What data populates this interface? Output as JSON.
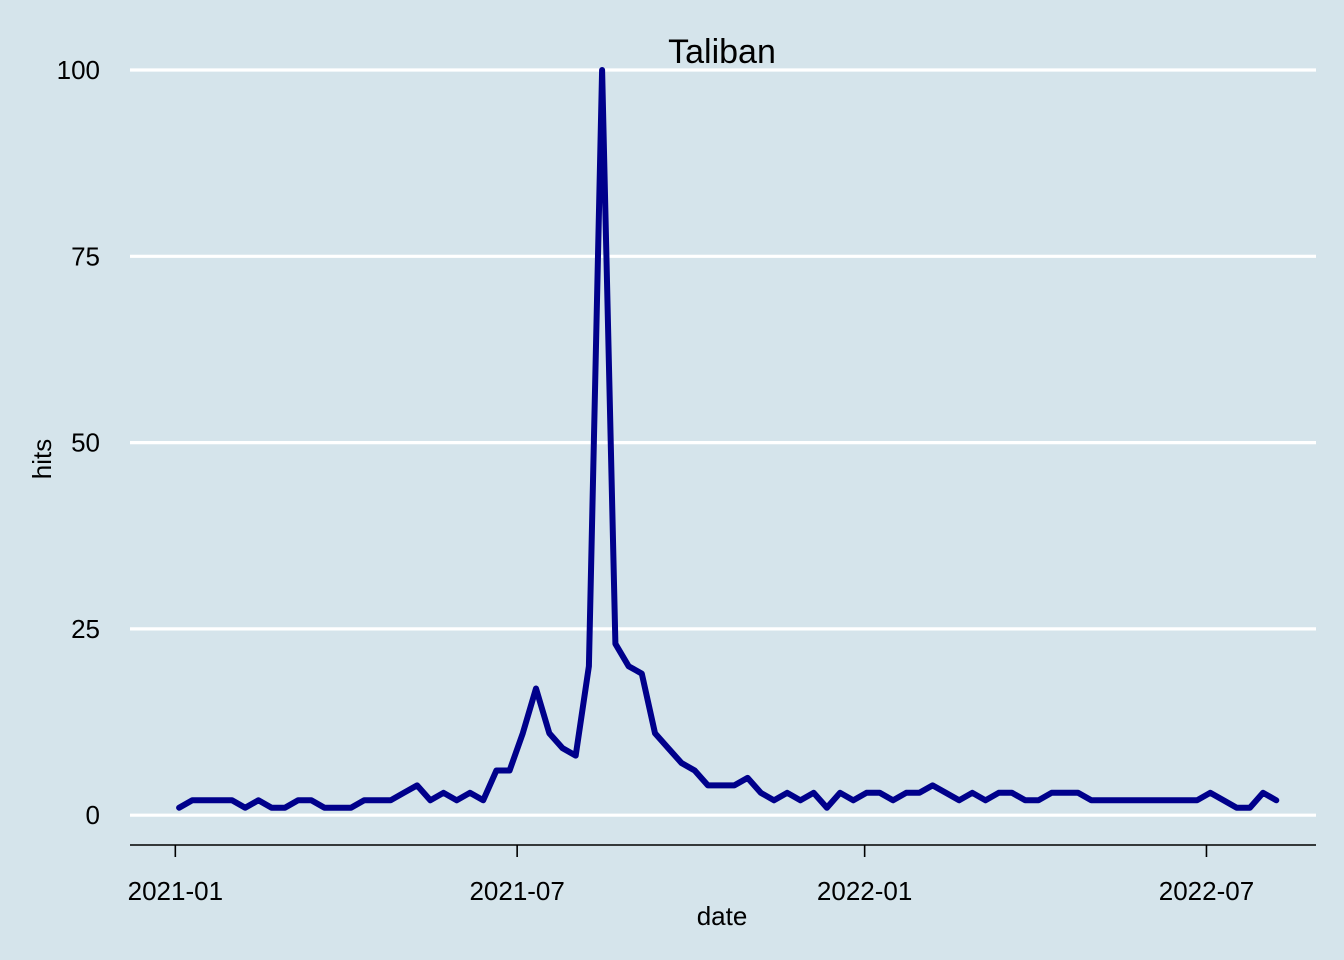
{
  "chart_data": {
    "type": "line",
    "title": "Taliban",
    "xlabel": "date",
    "ylabel": "hits",
    "y_ticks": [
      0,
      25,
      50,
      75,
      100
    ],
    "x_ticks": [
      "2021-01",
      "2021-07",
      "2022-01",
      "2022-07"
    ],
    "ylim": [
      -4,
      100
    ],
    "xlim": [
      "2020-12-08",
      "2022-08-28"
    ],
    "grid": "horizontal",
    "background_color": "#d5e4eb",
    "grid_color": "#ffffff",
    "line_color": "#00008b",
    "series": [
      {
        "x": [
          "2021-01-03",
          "2021-01-10",
          "2021-01-17",
          "2021-01-24",
          "2021-01-31",
          "2021-02-07",
          "2021-02-14",
          "2021-02-21",
          "2021-02-28",
          "2021-03-07",
          "2021-03-14",
          "2021-03-21",
          "2021-03-28",
          "2021-04-04",
          "2021-04-11",
          "2021-04-18",
          "2021-04-25",
          "2021-05-02",
          "2021-05-09",
          "2021-05-16",
          "2021-05-23",
          "2021-05-30",
          "2021-06-06",
          "2021-06-13",
          "2021-06-20",
          "2021-06-27",
          "2021-07-04",
          "2021-07-11",
          "2021-07-18",
          "2021-07-25",
          "2021-08-01",
          "2021-08-08",
          "2021-08-15",
          "2021-08-22",
          "2021-08-29",
          "2021-09-05",
          "2021-09-12",
          "2021-09-19",
          "2021-09-26",
          "2021-10-03",
          "2021-10-10",
          "2021-10-17",
          "2021-10-24",
          "2021-10-31",
          "2021-11-07",
          "2021-11-14",
          "2021-11-21",
          "2021-11-28",
          "2021-12-05",
          "2021-12-12",
          "2021-12-19",
          "2021-12-26",
          "2022-01-02",
          "2022-01-09",
          "2022-01-16",
          "2022-01-23",
          "2022-01-30",
          "2022-02-06",
          "2022-02-13",
          "2022-02-20",
          "2022-02-27",
          "2022-03-06",
          "2022-03-13",
          "2022-03-20",
          "2022-03-27",
          "2022-04-03",
          "2022-04-10",
          "2022-04-17",
          "2022-04-24",
          "2022-05-01",
          "2022-05-08",
          "2022-05-15",
          "2022-05-22",
          "2022-05-29",
          "2022-06-05",
          "2022-06-12",
          "2022-06-19",
          "2022-06-26",
          "2022-07-03",
          "2022-07-10",
          "2022-07-17",
          "2022-07-24",
          "2022-07-31",
          "2022-08-07"
        ],
        "values": [
          1,
          2,
          2,
          2,
          2,
          1,
          2,
          1,
          1,
          2,
          2,
          1,
          1,
          1,
          2,
          2,
          2,
          3,
          4,
          2,
          3,
          2,
          3,
          2,
          6,
          6,
          11,
          17,
          11,
          9,
          8,
          20,
          100,
          23,
          20,
          19,
          11,
          9,
          7,
          6,
          4,
          4,
          4,
          5,
          3,
          2,
          3,
          2,
          3,
          1,
          3,
          2,
          3,
          3,
          2,
          3,
          3,
          4,
          3,
          2,
          3,
          2,
          3,
          3,
          2,
          2,
          3,
          3,
          3,
          2,
          2,
          2,
          2,
          2,
          2,
          2,
          2,
          2,
          3,
          2,
          1,
          1,
          3,
          2
        ]
      }
    ]
  }
}
